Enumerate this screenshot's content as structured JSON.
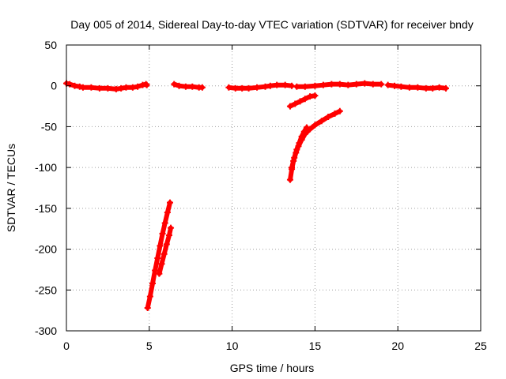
{
  "chart_data": {
    "type": "scatter",
    "title": "Day 005 of 2014, Sidereal Day-to-day VTEC variation (SDTVAR) for receiver bndy",
    "xlabel": "GPS time / hours",
    "ylabel": "SDTVAR / TECUs",
    "xlim": [
      0,
      25
    ],
    "ylim": [
      -300,
      50
    ],
    "xticks": [
      0,
      5,
      10,
      15,
      20,
      25
    ],
    "yticks": [
      -300,
      -250,
      -200,
      -150,
      -100,
      -50,
      0,
      50
    ],
    "grid": true,
    "color": "#ff0000",
    "series": [
      {
        "points": [
          [
            0.0,
            3
          ],
          [
            0.2,
            2
          ],
          [
            0.5,
            0
          ],
          [
            0.8,
            -1
          ],
          [
            1.0,
            -2
          ],
          [
            1.5,
            -2
          ],
          [
            2.0,
            -3
          ],
          [
            2.5,
            -3
          ],
          [
            3.0,
            -4
          ],
          [
            3.3,
            -3
          ],
          [
            3.6,
            -2
          ],
          [
            4.0,
            -2
          ],
          [
            4.3,
            -1
          ],
          [
            4.6,
            1
          ],
          [
            4.8,
            2
          ],
          [
            4.85,
            1
          ]
        ]
      },
      {
        "points": [
          [
            6.5,
            2
          ],
          [
            6.8,
            0
          ],
          [
            7.2,
            -1
          ],
          [
            7.6,
            -1
          ],
          [
            8.0,
            -2
          ],
          [
            8.2,
            -2
          ]
        ]
      },
      {
        "points": [
          [
            9.8,
            -2
          ],
          [
            10.2,
            -3
          ],
          [
            10.6,
            -3
          ],
          [
            11.0,
            -3
          ],
          [
            11.5,
            -2
          ],
          [
            12.0,
            -1
          ],
          [
            12.3,
            0
          ],
          [
            12.7,
            1
          ],
          [
            13.2,
            1
          ],
          [
            13.6,
            0
          ]
        ]
      },
      {
        "points": [
          [
            13.9,
            -1
          ],
          [
            14.4,
            -1
          ],
          [
            15.0,
            0
          ],
          [
            15.5,
            1
          ],
          [
            16.0,
            2
          ],
          [
            16.5,
            2
          ],
          [
            17.0,
            1
          ],
          [
            17.5,
            2
          ],
          [
            18.0,
            3
          ],
          [
            18.5,
            2
          ],
          [
            19.0,
            2
          ]
        ]
      },
      {
        "points": [
          [
            19.4,
            1
          ],
          [
            19.8,
            0
          ],
          [
            20.2,
            -1
          ],
          [
            20.7,
            -2
          ],
          [
            21.2,
            -2
          ],
          [
            21.7,
            -3
          ],
          [
            22.1,
            -3
          ],
          [
            22.5,
            -2
          ],
          [
            22.9,
            -3
          ]
        ]
      },
      {
        "points": [
          [
            4.9,
            -272
          ],
          [
            5.05,
            -258
          ],
          [
            5.2,
            -242
          ],
          [
            5.35,
            -226
          ],
          [
            5.5,
            -211
          ],
          [
            5.65,
            -196
          ],
          [
            5.8,
            -181
          ],
          [
            5.95,
            -168
          ],
          [
            6.1,
            -155
          ],
          [
            6.25,
            -143
          ]
        ]
      },
      {
        "points": [
          [
            5.6,
            -230
          ],
          [
            5.75,
            -218
          ],
          [
            5.9,
            -206
          ],
          [
            6.05,
            -194
          ],
          [
            6.2,
            -183
          ],
          [
            6.3,
            -174
          ]
        ]
      },
      {
        "points": [
          [
            13.5,
            -115
          ],
          [
            13.6,
            -102
          ],
          [
            13.7,
            -92
          ],
          [
            13.85,
            -82
          ],
          [
            14.0,
            -74
          ],
          [
            14.2,
            -66
          ],
          [
            14.4,
            -59
          ],
          [
            14.7,
            -53
          ],
          [
            15.0,
            -48
          ],
          [
            15.4,
            -43
          ],
          [
            15.8,
            -38
          ],
          [
            16.2,
            -34
          ],
          [
            16.5,
            -31
          ]
        ]
      },
      {
        "points": [
          [
            13.6,
            -100
          ],
          [
            13.75,
            -88
          ],
          [
            13.9,
            -78
          ],
          [
            14.05,
            -70
          ],
          [
            14.2,
            -62
          ],
          [
            14.35,
            -56
          ],
          [
            14.5,
            -51
          ]
        ]
      },
      {
        "points": [
          [
            13.5,
            -25
          ],
          [
            13.8,
            -22
          ],
          [
            14.1,
            -19
          ],
          [
            14.4,
            -16
          ],
          [
            14.7,
            -13
          ],
          [
            15.0,
            -12
          ]
        ]
      }
    ]
  }
}
